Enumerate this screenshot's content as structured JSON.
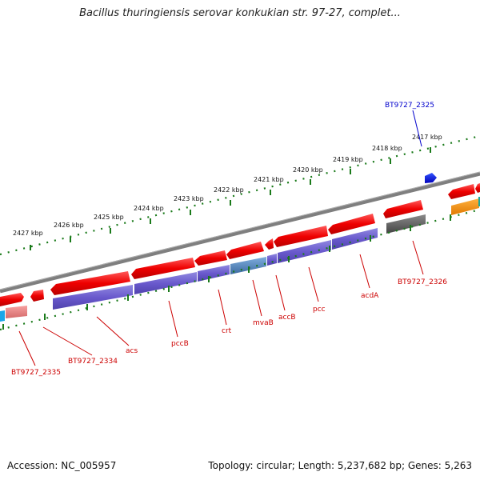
{
  "title": "Bacillus thuringiensis serovar konkukian str. 97-27, complet...",
  "footer": {
    "accession": "Accession: NC_005957",
    "summary": "Topology: circular; Length: 5,237,682 bp; Genes: 5,263"
  },
  "colors": {
    "forward_gene": "#ee0000",
    "reverse_cds": "#6a5acd",
    "backbone": "#7f7f7f",
    "ticks": "#1a7a1a",
    "label_red": "#cc0000",
    "label_blue": "#0000cc"
  },
  "scale": {
    "ticks": [
      {
        "label": "2427 kbp",
        "kb": 2427
      },
      {
        "label": "2426 kbp",
        "kb": 2426
      },
      {
        "label": "2425 kbp",
        "kb": 2425
      },
      {
        "label": "2424 kbp",
        "kb": 2424
      },
      {
        "label": "2423 kbp",
        "kb": 2423
      },
      {
        "label": "2422 kbp",
        "kb": 2422
      },
      {
        "label": "2421 kbp",
        "kb": 2421
      },
      {
        "label": "2420 kbp",
        "kb": 2420
      },
      {
        "label": "2419 kbp",
        "kb": 2419
      },
      {
        "label": "2418 kbp",
        "kb": 2418
      },
      {
        "label": "2417 kbp",
        "kb": 2417
      }
    ]
  },
  "genes": [
    {
      "name": "BT9727_2325",
      "color": "blue"
    },
    {
      "name": "BT9727_2326",
      "color": "red"
    },
    {
      "name": "acdA",
      "color": "red"
    },
    {
      "name": "pcc",
      "color": "red"
    },
    {
      "name": "accB",
      "color": "red"
    },
    {
      "name": "mvaB",
      "color": "red"
    },
    {
      "name": "crt",
      "color": "red"
    },
    {
      "name": "pccB",
      "color": "red"
    },
    {
      "name": "acs",
      "color": "red"
    },
    {
      "name": "BT9727_2334",
      "color": "red"
    },
    {
      "name": "BT9727_2335",
      "color": "red"
    }
  ]
}
